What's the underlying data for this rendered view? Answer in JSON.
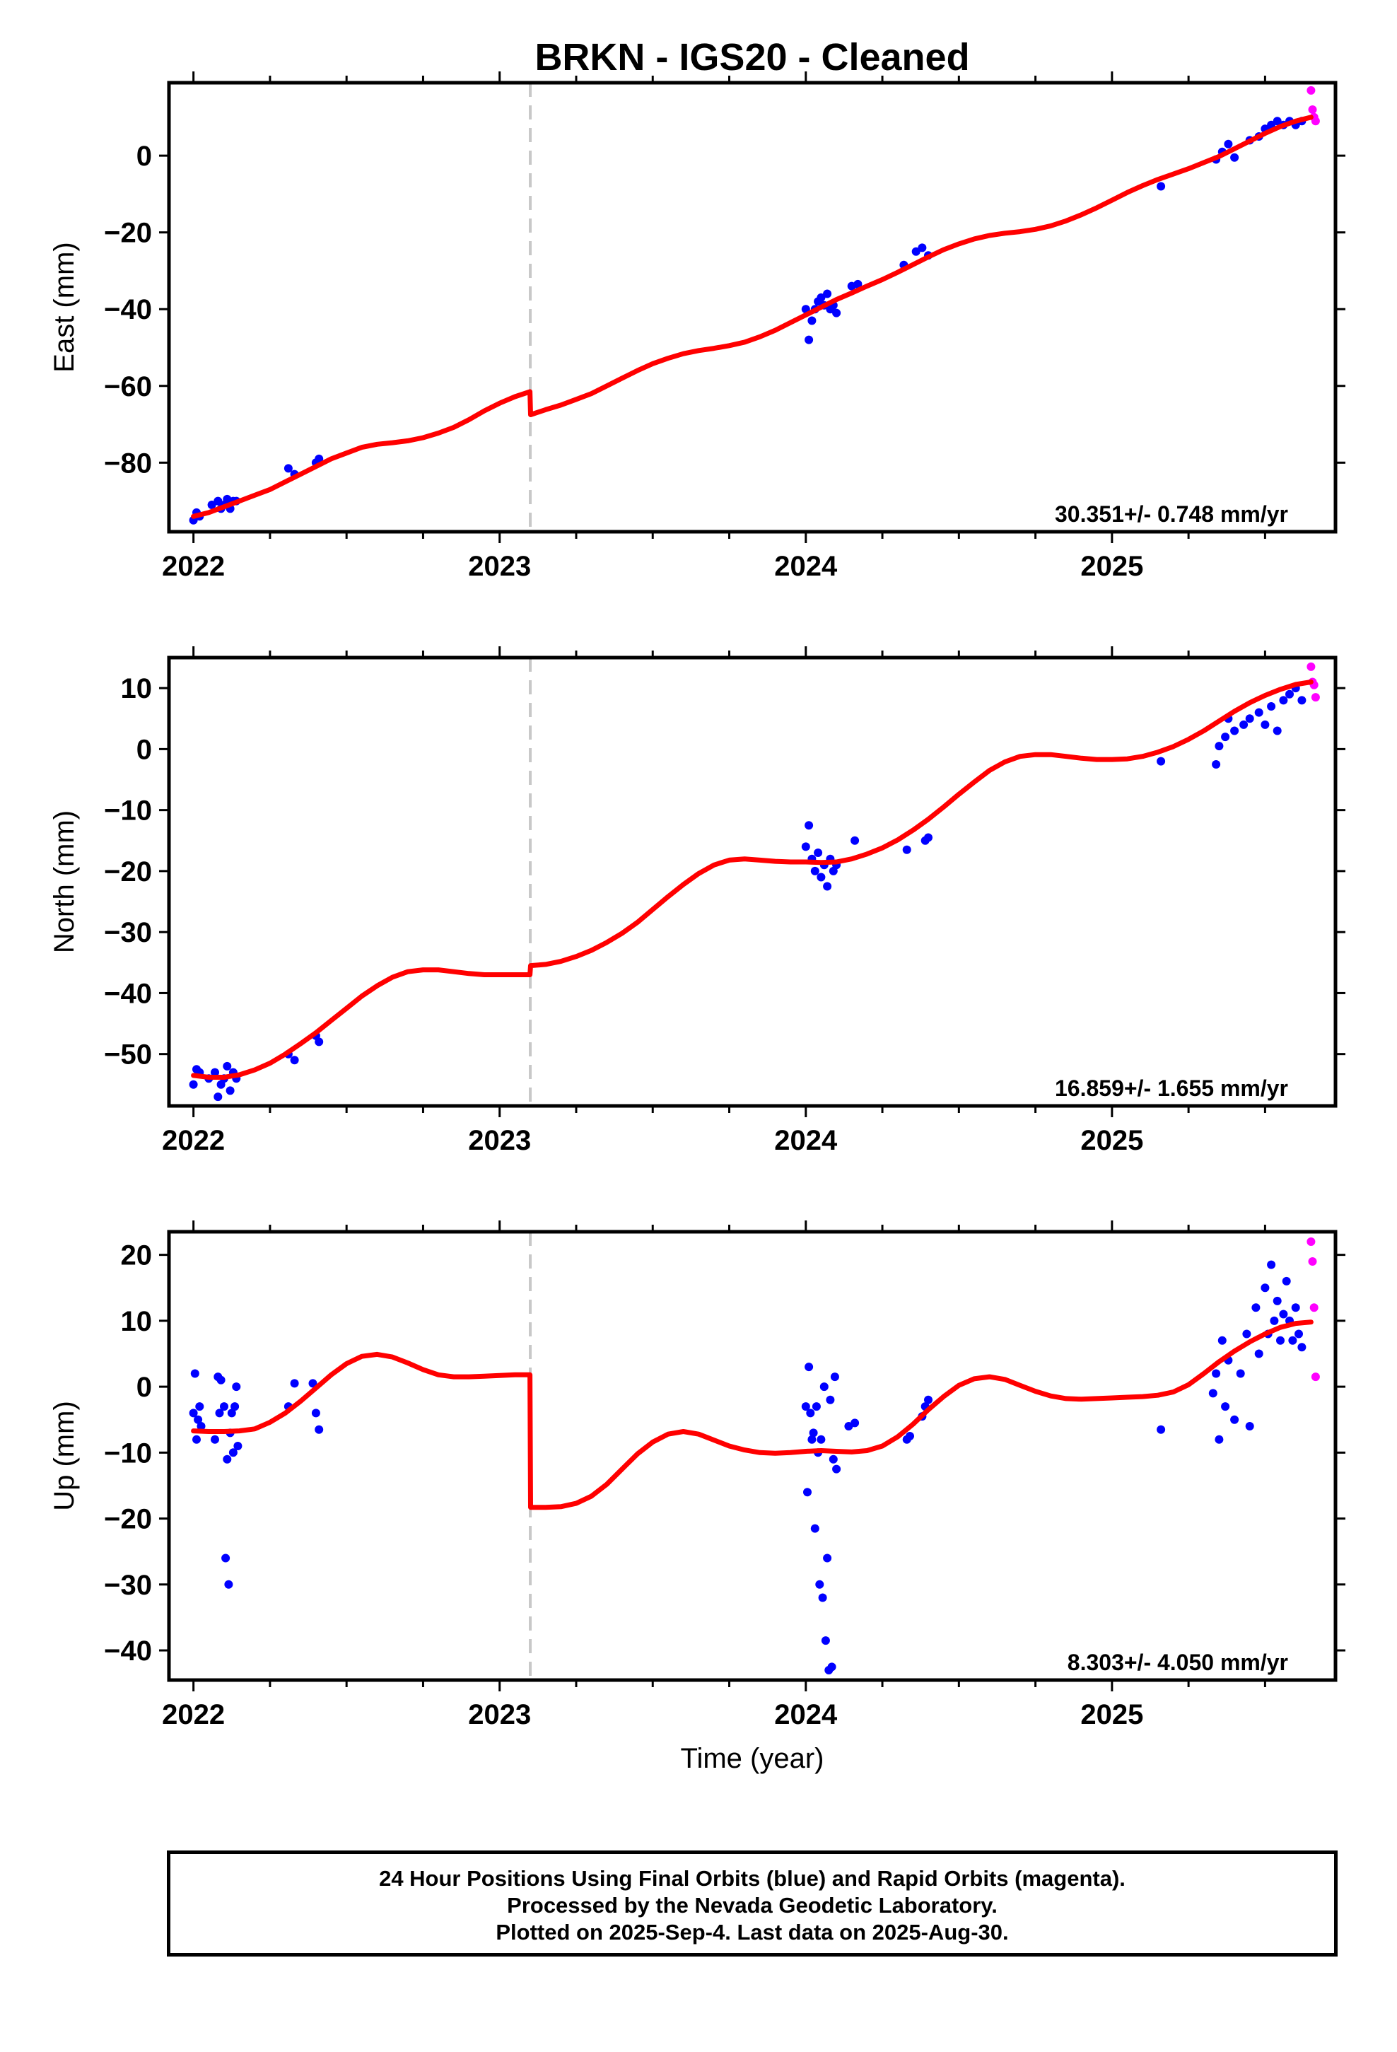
{
  "title": "BRKN  - IGS20 - Cleaned",
  "xlabel": "Time (year)",
  "footer": {
    "line1": "24 Hour Positions Using Final Orbits (blue) and Rapid Orbits (magenta).",
    "line2": "Processed by the Nevada Geodetic Laboratory.",
    "line3": "Plotted on 2025-Sep-4. Last data on 2025-Aug-30."
  },
  "colors": {
    "final_orbits": "#0000ff",
    "rapid_orbits": "#ff00ff",
    "model": "#ff0000",
    "event_line": "#c8c8c8"
  },
  "chart_data": [
    {
      "type": "scatter",
      "ylabel": "East (mm)",
      "rate_text": "30.351+/- 0.748 mm/yr",
      "xlim": [
        2021.92,
        2025.73
      ],
      "ylim": [
        -98,
        19
      ],
      "xticks": [
        2022,
        2023,
        2024,
        2025
      ],
      "xtick_labels": [
        "2022",
        "2023",
        "2024",
        "2025"
      ],
      "yticks": [
        -80,
        -60,
        -40,
        -20,
        0
      ],
      "ytick_labels": [
        "−80",
        "−60",
        "−40",
        "−20",
        "0"
      ],
      "event_line_x": 2023.1,
      "series": [
        {
          "role": "final",
          "x": [
            2022.0,
            2022.01,
            2022.02,
            2022.06,
            2022.08,
            2022.09,
            2022.1,
            2022.11,
            2022.12,
            2022.13,
            2022.14,
            2022.31,
            2022.33,
            2022.4,
            2022.41,
            2024.0,
            2024.01,
            2024.02,
            2024.03,
            2024.04,
            2024.05,
            2024.06,
            2024.07,
            2024.08,
            2024.09,
            2024.1,
            2024.15,
            2024.17,
            2024.32,
            2024.36,
            2024.38,
            2024.4,
            2025.16,
            2025.34,
            2025.36,
            2025.38,
            2025.4,
            2025.45,
            2025.48,
            2025.5,
            2025.52,
            2025.54,
            2025.56,
            2025.58,
            2025.6,
            2025.62
          ],
          "y": [
            -95,
            -93,
            -94,
            -91,
            -90,
            -92,
            -91,
            -89.5,
            -92,
            -90,
            -90,
            -81.5,
            -83,
            -80,
            -79,
            -40,
            -48,
            -43,
            -40,
            -38,
            -37,
            -39,
            -36,
            -40,
            -39,
            -41,
            -34,
            -33.5,
            -28.5,
            -25,
            -24,
            -26,
            -8,
            -1,
            1,
            3,
            -0.5,
            4,
            5,
            7,
            8,
            9,
            8,
            9,
            8,
            9
          ]
        },
        {
          "role": "rapid",
          "x": [
            2025.65,
            2025.655,
            2025.66,
            2025.665
          ],
          "y": [
            17,
            12,
            10,
            9
          ]
        },
        {
          "role": "model",
          "x": [
            2022.0,
            2022.05,
            2022.1,
            2022.15,
            2022.2,
            2022.25,
            2022.3,
            2022.35,
            2022.4,
            2022.45,
            2022.5,
            2022.55,
            2022.6,
            2022.65,
            2022.7,
            2022.75,
            2022.8,
            2022.85,
            2022.9,
            2022.95,
            2023.0,
            2023.05,
            2023.099,
            2023.101,
            2023.15,
            2023.2,
            2023.25,
            2023.3,
            2023.35,
            2023.4,
            2023.45,
            2023.5,
            2023.55,
            2023.6,
            2023.65,
            2023.7,
            2023.75,
            2023.8,
            2023.85,
            2023.9,
            2023.95,
            2024.0,
            2024.05,
            2024.1,
            2024.15,
            2024.2,
            2024.25,
            2024.3,
            2024.35,
            2024.4,
            2024.45,
            2024.5,
            2024.55,
            2024.6,
            2024.65,
            2024.7,
            2024.75,
            2024.8,
            2024.85,
            2024.9,
            2024.95,
            2025.0,
            2025.05,
            2025.1,
            2025.15,
            2025.2,
            2025.25,
            2025.3,
            2025.35,
            2025.4,
            2025.45,
            2025.5,
            2025.55,
            2025.6,
            2025.65
          ],
          "y": [
            -94,
            -93,
            -91.5,
            -90,
            -88.5,
            -87,
            -85,
            -83,
            -81,
            -79,
            -77.5,
            -76,
            -75.2,
            -74.8,
            -74.3,
            -73.5,
            -72.3,
            -70.8,
            -68.8,
            -66.5,
            -64.5,
            -62.8,
            -61.5,
            -67.5,
            -66.2,
            -65,
            -63.5,
            -62,
            -60,
            -58,
            -56,
            -54.2,
            -52.8,
            -51.6,
            -50.8,
            -50.2,
            -49.5,
            -48.6,
            -47.2,
            -45.5,
            -43.5,
            -41.5,
            -39.5,
            -37.5,
            -35.8,
            -34,
            -32.3,
            -30.4,
            -28.4,
            -26.4,
            -24.5,
            -23,
            -21.7,
            -20.8,
            -20.2,
            -19.8,
            -19.2,
            -18.3,
            -17,
            -15.4,
            -13.6,
            -11.6,
            -9.6,
            -7.8,
            -6.2,
            -4.8,
            -3.4,
            -1.8,
            -0.2,
            1.8,
            3.8,
            5.8,
            7.6,
            9.0,
            10.0
          ]
        }
      ]
    },
    {
      "type": "scatter",
      "ylabel": "North (mm)",
      "rate_text": "16.859+/- 1.655 mm/yr",
      "xlim": [
        2021.92,
        2025.73
      ],
      "ylim": [
        -58.5,
        15
      ],
      "xticks": [
        2022,
        2023,
        2024,
        2025
      ],
      "xtick_labels": [
        "2022",
        "2023",
        "2024",
        "2025"
      ],
      "yticks": [
        -50,
        -40,
        -30,
        -20,
        -10,
        0,
        10
      ],
      "ytick_labels": [
        "−50",
        "−40",
        "−30",
        "−20",
        "−10",
        "0",
        "10"
      ],
      "event_line_x": 2023.1,
      "series": [
        {
          "role": "final",
          "x": [
            2022.0,
            2022.01,
            2022.02,
            2022.05,
            2022.07,
            2022.08,
            2022.09,
            2022.1,
            2022.11,
            2022.12,
            2022.13,
            2022.14,
            2022.31,
            2022.33,
            2022.4,
            2022.41,
            2024.0,
            2024.01,
            2024.02,
            2024.03,
            2024.04,
            2024.05,
            2024.06,
            2024.07,
            2024.08,
            2024.09,
            2024.1,
            2024.16,
            2024.33,
            2024.39,
            2024.4,
            2025.16,
            2025.34,
            2025.35,
            2025.37,
            2025.38,
            2025.4,
            2025.43,
            2025.45,
            2025.48,
            2025.5,
            2025.52,
            2025.54,
            2025.56,
            2025.58,
            2025.6,
            2025.62
          ],
          "y": [
            -55,
            -52.5,
            -53,
            -54,
            -53,
            -57,
            -55,
            -54,
            -52,
            -56,
            -53,
            -54,
            -50,
            -51,
            -47,
            -48,
            -16,
            -12.5,
            -18,
            -20,
            -17,
            -21,
            -19,
            -22.5,
            -18,
            -20,
            -19,
            -15,
            -16.5,
            -15,
            -14.5,
            -2,
            -2.5,
            0.5,
            2,
            5,
            3,
            4,
            5,
            6,
            4,
            7,
            3,
            8,
            9,
            10,
            8
          ]
        },
        {
          "role": "rapid",
          "x": [
            2025.65,
            2025.655,
            2025.66,
            2025.665
          ],
          "y": [
            13.5,
            11,
            10.5,
            8.5
          ]
        },
        {
          "role": "model",
          "x": [
            2022.0,
            2022.05,
            2022.1,
            2022.15,
            2022.2,
            2022.25,
            2022.3,
            2022.35,
            2022.4,
            2022.45,
            2022.5,
            2022.55,
            2022.6,
            2022.65,
            2022.7,
            2022.75,
            2022.8,
            2022.85,
            2022.9,
            2022.95,
            2023.0,
            2023.05,
            2023.099,
            2023.101,
            2023.15,
            2023.2,
            2023.25,
            2023.3,
            2023.35,
            2023.4,
            2023.45,
            2023.5,
            2023.55,
            2023.6,
            2023.65,
            2023.7,
            2023.75,
            2023.8,
            2023.85,
            2023.9,
            2023.95,
            2024.0,
            2024.05,
            2024.1,
            2024.15,
            2024.2,
            2024.25,
            2024.3,
            2024.35,
            2024.4,
            2024.45,
            2024.5,
            2024.55,
            2024.6,
            2024.65,
            2024.7,
            2024.75,
            2024.8,
            2024.85,
            2024.9,
            2024.95,
            2025.0,
            2025.05,
            2025.1,
            2025.15,
            2025.2,
            2025.25,
            2025.3,
            2025.35,
            2025.4,
            2025.45,
            2025.5,
            2025.55,
            2025.6,
            2025.65
          ],
          "y": [
            -53.5,
            -53.8,
            -53.8,
            -53.4,
            -52.6,
            -51.5,
            -50,
            -48.3,
            -46.5,
            -44.5,
            -42.5,
            -40.5,
            -38.8,
            -37.4,
            -36.5,
            -36.2,
            -36.2,
            -36.5,
            -36.8,
            -37,
            -37,
            -37,
            -37,
            -35.5,
            -35.3,
            -34.8,
            -34,
            -33,
            -31.7,
            -30.2,
            -28.4,
            -26.3,
            -24.2,
            -22.2,
            -20.4,
            -19,
            -18.2,
            -18,
            -18.2,
            -18.4,
            -18.5,
            -18.5,
            -18.6,
            -18.5,
            -18,
            -17.2,
            -16.2,
            -14.9,
            -13.3,
            -11.5,
            -9.5,
            -7.4,
            -5.4,
            -3.5,
            -2.1,
            -1.2,
            -0.9,
            -0.9,
            -1.2,
            -1.5,
            -1.7,
            -1.7,
            -1.6,
            -1.2,
            -0.5,
            0.4,
            1.6,
            3.0,
            4.6,
            6.2,
            7.6,
            8.8,
            9.8,
            10.6,
            11.0
          ]
        }
      ]
    },
    {
      "type": "scatter",
      "ylabel": "Up (mm)",
      "xlabel": "Time (year)",
      "rate_text": "8.303+/- 4.050 mm/yr",
      "xlim": [
        2021.92,
        2025.73
      ],
      "ylim": [
        -44.5,
        23.5
      ],
      "xticks": [
        2022,
        2023,
        2024,
        2025
      ],
      "xtick_labels": [
        "2022",
        "2023",
        "2024",
        "2025"
      ],
      "yticks": [
        -40,
        -30,
        -20,
        -10,
        0,
        10,
        20
      ],
      "ytick_labels": [
        "−40",
        "−30",
        "−20",
        "−10",
        "0",
        "10",
        "20"
      ],
      "event_line_x": 2023.1,
      "series": [
        {
          "role": "final",
          "x": [
            2022.0,
            2022.005,
            2022.01,
            2022.015,
            2022.02,
            2022.025,
            2022.07,
            2022.08,
            2022.085,
            2022.09,
            2022.1,
            2022.105,
            2022.11,
            2022.115,
            2022.12,
            2022.125,
            2022.13,
            2022.135,
            2022.14,
            2022.145,
            2022.31,
            2022.33,
            2022.39,
            2022.4,
            2022.41,
            2024.0,
            2024.005,
            2024.01,
            2024.015,
            2024.02,
            2024.025,
            2024.03,
            2024.035,
            2024.04,
            2024.045,
            2024.05,
            2024.055,
            2024.06,
            2024.065,
            2024.07,
            2024.075,
            2024.08,
            2024.085,
            2024.09,
            2024.095,
            2024.1,
            2024.14,
            2024.16,
            2024.33,
            2024.34,
            2024.38,
            2024.39,
            2024.4,
            2025.16,
            2025.33,
            2025.34,
            2025.35,
            2025.36,
            2025.37,
            2025.38,
            2025.4,
            2025.42,
            2025.44,
            2025.45,
            2025.47,
            2025.48,
            2025.5,
            2025.51,
            2025.52,
            2025.53,
            2025.54,
            2025.55,
            2025.56,
            2025.57,
            2025.58,
            2025.59,
            2025.6,
            2025.61,
            2025.62
          ],
          "y": [
            -4,
            2,
            -8,
            -5,
            -3,
            -6,
            -8,
            1.5,
            -4,
            1,
            -3,
            -26,
            -11,
            -30,
            -7,
            -4,
            -10,
            -3,
            0,
            -9,
            -3,
            0.5,
            0.5,
            -4,
            -6.5,
            -3,
            -16,
            3,
            -4,
            -8,
            -7,
            -21.5,
            -3,
            -10,
            -30,
            -8,
            -32,
            0,
            -38.5,
            -26,
            -43,
            -2,
            -42.5,
            -11,
            1.5,
            -12.5,
            -6,
            -5.5,
            -8,
            -7.5,
            -4.5,
            -3,
            -2,
            -6.5,
            -1,
            2,
            -8,
            7,
            -3,
            4,
            -5,
            2,
            8,
            -6,
            12,
            5,
            15,
            8,
            18.5,
            10,
            13,
            7,
            11,
            16,
            10,
            7,
            12,
            8,
            6
          ]
        },
        {
          "role": "rapid",
          "x": [
            2025.65,
            2025.655,
            2025.66,
            2025.665
          ],
          "y": [
            22,
            19,
            12,
            1.5
          ]
        },
        {
          "role": "model",
          "x": [
            2022.0,
            2022.05,
            2022.1,
            2022.15,
            2022.2,
            2022.25,
            2022.3,
            2022.35,
            2022.4,
            2022.45,
            2022.5,
            2022.55,
            2022.6,
            2022.65,
            2022.7,
            2022.75,
            2022.8,
            2022.85,
            2022.9,
            2022.95,
            2023.0,
            2023.05,
            2023.099,
            2023.101,
            2023.15,
            2023.2,
            2023.25,
            2023.3,
            2023.35,
            2023.4,
            2023.45,
            2023.5,
            2023.55,
            2023.6,
            2023.65,
            2023.7,
            2023.75,
            2023.8,
            2023.85,
            2023.9,
            2023.95,
            2024.0,
            2024.05,
            2024.1,
            2024.15,
            2024.2,
            2024.25,
            2024.3,
            2024.35,
            2024.4,
            2024.45,
            2024.5,
            2024.55,
            2024.6,
            2024.65,
            2024.7,
            2024.75,
            2024.8,
            2024.85,
            2024.9,
            2024.95,
            2025.0,
            2025.05,
            2025.1,
            2025.15,
            2025.2,
            2025.25,
            2025.3,
            2025.35,
            2025.4,
            2025.45,
            2025.5,
            2025.55,
            2025.6,
            2025.65
          ],
          "y": [
            -6.7,
            -6.8,
            -6.8,
            -6.7,
            -6.4,
            -5.4,
            -4,
            -2.2,
            -0.2,
            1.8,
            3.5,
            4.6,
            4.9,
            4.5,
            3.6,
            2.6,
            1.8,
            1.5,
            1.5,
            1.6,
            1.7,
            1.8,
            1.8,
            -18.3,
            -18.3,
            -18.2,
            -17.7,
            -16.6,
            -14.8,
            -12.5,
            -10.2,
            -8.4,
            -7.2,
            -6.8,
            -7.2,
            -8.1,
            -9.0,
            -9.6,
            -10.0,
            -10.1,
            -10.0,
            -9.8,
            -9.7,
            -9.8,
            -9.9,
            -9.7,
            -9.0,
            -7.6,
            -5.7,
            -3.5,
            -1.5,
            0.2,
            1.2,
            1.5,
            1.1,
            0.2,
            -0.7,
            -1.4,
            -1.8,
            -1.9,
            -1.8,
            -1.7,
            -1.6,
            -1.5,
            -1.3,
            -0.8,
            0.3,
            2.0,
            3.8,
            5.4,
            6.8,
            8.0,
            9.0,
            9.6,
            9.8
          ]
        }
      ]
    }
  ]
}
